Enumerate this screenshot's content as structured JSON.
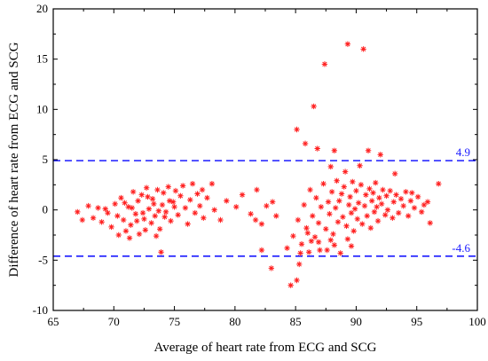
{
  "chart_data": {
    "type": "scatter",
    "xlabel": "Average of heart rate from ECG and SCG",
    "ylabel": "Difference of heart rate from ECG and SCG",
    "xlim": [
      65,
      100
    ],
    "ylim": [
      -10,
      20
    ],
    "xticks": [
      65,
      70,
      75,
      80,
      85,
      90,
      95,
      100
    ],
    "yticks": [
      -10,
      -5,
      0,
      5,
      10,
      15,
      20
    ],
    "marker": "asterisk",
    "colors": {
      "points": "#ff2020",
      "reference": "#1a1aff"
    },
    "reference_lines": [
      {
        "value": 4.9,
        "label": "4.9"
      },
      {
        "value": -4.6,
        "label": "-4.6"
      }
    ],
    "points": [
      [
        89.3,
        16.5
      ],
      [
        90.6,
        16.0
      ],
      [
        87.4,
        14.5
      ],
      [
        86.5,
        10.3
      ],
      [
        85.1,
        8.0
      ],
      [
        85.8,
        6.6
      ],
      [
        86.8,
        6.1
      ],
      [
        88.2,
        5.9
      ],
      [
        91.0,
        5.9
      ],
      [
        92.0,
        5.5
      ],
      [
        87.9,
        4.3
      ],
      [
        90.3,
        4.4
      ],
      [
        89.1,
        3.8
      ],
      [
        93.2,
        3.6
      ],
      [
        96.8,
        2.6
      ],
      [
        78.1,
        2.6
      ],
      [
        77.3,
        2.0
      ],
      [
        81.8,
        2.0
      ],
      [
        83.1,
        0.8
      ],
      [
        80.1,
        0.3
      ],
      [
        82.2,
        -1.4
      ],
      [
        73.9,
        -4.2
      ],
      [
        82.2,
        -4.0
      ],
      [
        83.0,
        -5.8
      ],
      [
        84.6,
        -7.5
      ],
      [
        85.1,
        -7.0
      ],
      [
        85.3,
        -5.4
      ],
      [
        86.1,
        -4.2
      ],
      [
        87.6,
        -4.0
      ],
      [
        88.7,
        -4.3
      ],
      [
        86.9,
        -3.2
      ],
      [
        95.4,
        -0.2
      ],
      [
        96.1,
        -1.3
      ],
      [
        94.6,
        1.7
      ],
      [
        95.9,
        0.8
      ],
      [
        67.0,
        -0.2
      ],
      [
        67.4,
        -1.0
      ],
      [
        67.9,
        0.4
      ],
      [
        68.3,
        -0.8
      ],
      [
        68.7,
        0.2
      ],
      [
        69.0,
        -1.2
      ],
      [
        69.5,
        -0.3
      ],
      [
        69.8,
        -1.7
      ],
      [
        70.1,
        0.6
      ],
      [
        70.3,
        -0.6
      ],
      [
        70.6,
        1.2
      ],
      [
        70.8,
        -1.0
      ],
      [
        71.0,
        -2.1
      ],
      [
        71.2,
        0.3
      ],
      [
        71.4,
        -1.5
      ],
      [
        71.6,
        1.8
      ],
      [
        71.8,
        -0.4
      ],
      [
        72.0,
        0.9
      ],
      [
        72.1,
        -2.4
      ],
      [
        72.3,
        1.5
      ],
      [
        72.5,
        -0.9
      ],
      [
        72.7,
        2.2
      ],
      [
        72.9,
        0.1
      ],
      [
        73.1,
        -1.3
      ],
      [
        73.2,
        1.1
      ],
      [
        73.4,
        -0.6
      ],
      [
        73.6,
        2.0
      ],
      [
        73.8,
        -1.9
      ],
      [
        74.0,
        0.5
      ],
      [
        74.1,
        1.7
      ],
      [
        74.3,
        -0.2
      ],
      [
        74.5,
        2.3
      ],
      [
        74.7,
        -1.1
      ],
      [
        74.9,
        0.8
      ],
      [
        75.1,
        1.9
      ],
      [
        75.3,
        -0.5
      ],
      [
        75.5,
        1.4
      ],
      [
        75.7,
        2.4
      ],
      [
        75.9,
        0.2
      ],
      [
        76.1,
        -1.4
      ],
      [
        76.3,
        1.0
      ],
      [
        76.5,
        2.6
      ],
      [
        76.7,
        -0.3
      ],
      [
        76.9,
        1.6
      ],
      [
        77.1,
        0.4
      ],
      [
        77.4,
        -0.8
      ],
      [
        77.7,
        1.2
      ],
      [
        78.3,
        0.0
      ],
      [
        78.8,
        -1.0
      ],
      [
        79.3,
        0.9
      ],
      [
        80.6,
        1.5
      ],
      [
        81.3,
        -0.4
      ],
      [
        81.7,
        -1.0
      ],
      [
        82.6,
        0.4
      ],
      [
        83.4,
        -0.6
      ],
      [
        71.5,
        0.2
      ],
      [
        72.4,
        -0.3
      ],
      [
        73.3,
        0.6
      ],
      [
        74.2,
        -0.7
      ],
      [
        75.0,
        0.3
      ],
      [
        70.9,
        0.7
      ],
      [
        71.9,
        -1.1
      ],
      [
        72.8,
        1.3
      ],
      [
        73.7,
        -0.1
      ],
      [
        74.6,
        0.9
      ],
      [
        69.3,
        0.1
      ],
      [
        70.4,
        -2.5
      ],
      [
        71.3,
        -2.8
      ],
      [
        72.6,
        -2.0
      ],
      [
        73.5,
        -2.6
      ],
      [
        84.3,
        -3.8
      ],
      [
        84.8,
        -2.6
      ],
      [
        85.2,
        -1.0
      ],
      [
        85.5,
        -3.4
      ],
      [
        85.7,
        0.5
      ],
      [
        85.9,
        -1.8
      ],
      [
        86.2,
        2.0
      ],
      [
        86.4,
        -0.6
      ],
      [
        86.6,
        -2.7
      ],
      [
        86.7,
        1.2
      ],
      [
        86.9,
        -1.3
      ],
      [
        87.1,
        0.3
      ],
      [
        87.3,
        2.6
      ],
      [
        87.5,
        -1.9
      ],
      [
        87.7,
        0.8
      ],
      [
        87.8,
        -0.4
      ],
      [
        88.0,
        1.8
      ],
      [
        88.1,
        -2.4
      ],
      [
        88.3,
        0.2
      ],
      [
        88.4,
        2.9
      ],
      [
        88.5,
        -1.2
      ],
      [
        88.6,
        0.9
      ],
      [
        88.8,
        1.6
      ],
      [
        88.9,
        -0.7
      ],
      [
        89.0,
        2.3
      ],
      [
        89.2,
        -1.6
      ],
      [
        89.4,
        0.5
      ],
      [
        89.5,
        1.3
      ],
      [
        89.6,
        -0.3
      ],
      [
        89.7,
        2.8
      ],
      [
        89.8,
        -2.1
      ],
      [
        89.9,
        0.1
      ],
      [
        90.0,
        1.9
      ],
      [
        90.1,
        -0.9
      ],
      [
        90.2,
        0.7
      ],
      [
        90.4,
        2.5
      ],
      [
        90.5,
        -1.4
      ],
      [
        90.7,
        0.4
      ],
      [
        90.8,
        1.5
      ],
      [
        90.9,
        -0.6
      ],
      [
        91.1,
        2.1
      ],
      [
        91.2,
        -1.8
      ],
      [
        91.3,
        0.9
      ],
      [
        91.4,
        1.7
      ],
      [
        91.5,
        -0.2
      ],
      [
        91.6,
        2.7
      ],
      [
        91.7,
        0.3
      ],
      [
        91.8,
        -1.1
      ],
      [
        91.9,
        1.2
      ],
      [
        92.1,
        0.6
      ],
      [
        92.2,
        2.0
      ],
      [
        92.4,
        -0.5
      ],
      [
        92.5,
        1.4
      ],
      [
        92.6,
        0.0
      ],
      [
        92.8,
        1.9
      ],
      [
        93.0,
        -0.8
      ],
      [
        93.1,
        0.8
      ],
      [
        93.3,
        1.5
      ],
      [
        93.5,
        -0.3
      ],
      [
        93.7,
        1.1
      ],
      [
        93.9,
        0.4
      ],
      [
        94.1,
        1.8
      ],
      [
        94.3,
        -0.6
      ],
      [
        94.5,
        0.9
      ],
      [
        94.8,
        0.2
      ],
      [
        95.1,
        1.3
      ],
      [
        95.6,
        0.5
      ],
      [
        86.3,
        -3.1
      ],
      [
        87.0,
        -4.0
      ],
      [
        88.2,
        -3.5
      ],
      [
        89.3,
        -2.9
      ],
      [
        87.9,
        -3.0
      ],
      [
        86.0,
        -2.3
      ],
      [
        85.4,
        -4.3
      ],
      [
        89.6,
        -3.6
      ]
    ]
  }
}
